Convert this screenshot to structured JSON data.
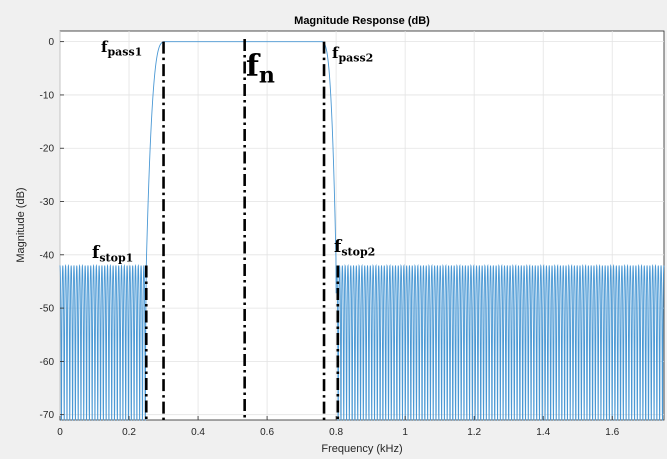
{
  "chart_data": {
    "type": "line",
    "title": "Magnitude Response (dB)",
    "xlabel": "Frequency (kHz)",
    "ylabel": "Magnitude (dB)",
    "xlim": [
      0,
      1.75
    ],
    "ylim": [
      -71,
      2
    ],
    "grid": true,
    "x_ticks": [
      0,
      0.2,
      0.4,
      0.6,
      0.8,
      1,
      1.2,
      1.4,
      1.6
    ],
    "x_tick_labels": [
      "0",
      "0.2",
      "0.4",
      "0.6",
      "0.8",
      "1",
      "1.2",
      "1.4",
      "1.6"
    ],
    "y_ticks": [
      0,
      -10,
      -20,
      -30,
      -40,
      -50,
      -60,
      -70
    ],
    "y_tick_labels": [
      "0",
      "-10",
      "-20",
      "-30",
      "-40",
      "-50",
      "-60",
      "-70"
    ],
    "line_color": "#4a98d4",
    "series": [
      {
        "name": "",
        "stopband_ripple_peak_db": -42,
        "passband_db": 0,
        "f_stop1": 0.25,
        "f_pass1": 0.3,
        "f_pass2": 0.76,
        "f_stop2": 0.8
      }
    ],
    "markers": [
      {
        "id": "fstop1",
        "x": 0.25,
        "main": "f",
        "sub": "stop1"
      },
      {
        "id": "fpass1",
        "x": 0.3,
        "main": "f",
        "sub": "pass1"
      },
      {
        "id": "fn",
        "x": 0.535,
        "main": "f",
        "sub": "n"
      },
      {
        "id": "fpass2",
        "x": 0.765,
        "main": "f",
        "sub": "pass2"
      },
      {
        "id": "fstop2",
        "x": 0.805,
        "main": "f",
        "sub": "stop2"
      }
    ]
  }
}
